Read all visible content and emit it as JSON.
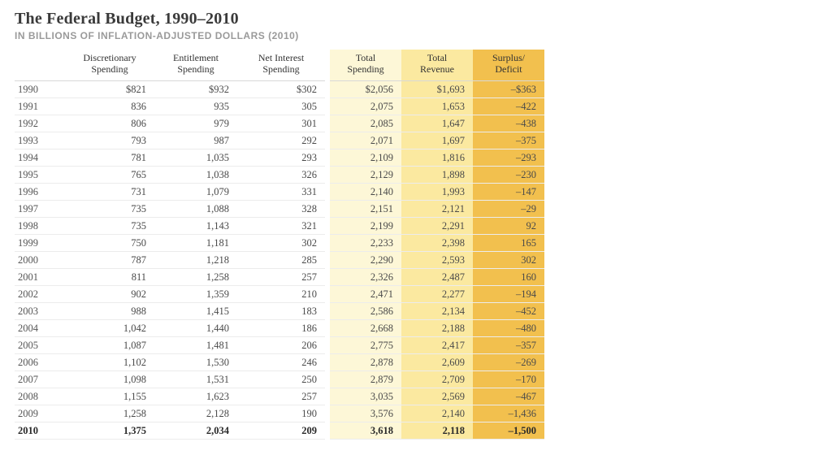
{
  "title": "The Federal Budget, 1990–2010",
  "subtitle": "IN BILLIONS OF INFLATION-ADJUSTED DOLLARS (2010)",
  "columns": {
    "year": "",
    "discretionary": "Discretionary\nSpending",
    "entitlement": "Entitlement\nSpending",
    "netinterest": "Net Interest\nSpending",
    "totalspending": "Total\nSpending",
    "totalrevenue": "Total\nRevenue",
    "surplus": "Surplus/\nDeficit"
  },
  "col_bg": {
    "totalspending": "#fdf7d7",
    "totalrevenue": "#fbe9a0",
    "surplus": "#f2c04e"
  },
  "rows": [
    {
      "year": "1990",
      "disc": "$821",
      "ent": "$932",
      "net": "$302",
      "ts": "$2,056",
      "tr": "$1,693",
      "sd": "–$363"
    },
    {
      "year": "1991",
      "disc": "836",
      "ent": "935",
      "net": "305",
      "ts": "2,075",
      "tr": "1,653",
      "sd": "–422"
    },
    {
      "year": "1992",
      "disc": "806",
      "ent": "979",
      "net": "301",
      "ts": "2,085",
      "tr": "1,647",
      "sd": "–438"
    },
    {
      "year": "1993",
      "disc": "793",
      "ent": "987",
      "net": "292",
      "ts": "2,071",
      "tr": "1,697",
      "sd": "–375"
    },
    {
      "year": "1994",
      "disc": "781",
      "ent": "1,035",
      "net": "293",
      "ts": "2,109",
      "tr": "1,816",
      "sd": "–293"
    },
    {
      "year": "1995",
      "disc": "765",
      "ent": "1,038",
      "net": "326",
      "ts": "2,129",
      "tr": "1,898",
      "sd": "–230"
    },
    {
      "year": "1996",
      "disc": "731",
      "ent": "1,079",
      "net": "331",
      "ts": "2,140",
      "tr": "1,993",
      "sd": "–147"
    },
    {
      "year": "1997",
      "disc": "735",
      "ent": "1,088",
      "net": "328",
      "ts": "2,151",
      "tr": "2,121",
      "sd": "–29"
    },
    {
      "year": "1998",
      "disc": "735",
      "ent": "1,143",
      "net": "321",
      "ts": "2,199",
      "tr": "2,291",
      "sd": "92"
    },
    {
      "year": "1999",
      "disc": "750",
      "ent": "1,181",
      "net": "302",
      "ts": "2,233",
      "tr": "2,398",
      "sd": "165"
    },
    {
      "year": "2000",
      "disc": "787",
      "ent": "1,218",
      "net": "285",
      "ts": "2,290",
      "tr": "2,593",
      "sd": "302"
    },
    {
      "year": "2001",
      "disc": "811",
      "ent": "1,258",
      "net": "257",
      "ts": "2,326",
      "tr": "2,487",
      "sd": "160"
    },
    {
      "year": "2002",
      "disc": "902",
      "ent": "1,359",
      "net": "210",
      "ts": "2,471",
      "tr": "2,277",
      "sd": "–194"
    },
    {
      "year": "2003",
      "disc": "988",
      "ent": "1,415",
      "net": "183",
      "ts": "2,586",
      "tr": "2,134",
      "sd": "–452"
    },
    {
      "year": "2004",
      "disc": "1,042",
      "ent": "1,440",
      "net": "186",
      "ts": "2,668",
      "tr": "2,188",
      "sd": "–480"
    },
    {
      "year": "2005",
      "disc": "1,087",
      "ent": "1,481",
      "net": "206",
      "ts": "2,775",
      "tr": "2,417",
      "sd": "–357"
    },
    {
      "year": "2006",
      "disc": "1,102",
      "ent": "1,530",
      "net": "246",
      "ts": "2,878",
      "tr": "2,609",
      "sd": "–269"
    },
    {
      "year": "2007",
      "disc": "1,098",
      "ent": "1,531",
      "net": "250",
      "ts": "2,879",
      "tr": "2,709",
      "sd": "–170"
    },
    {
      "year": "2008",
      "disc": "1,155",
      "ent": "1,623",
      "net": "257",
      "ts": "3,035",
      "tr": "2,569",
      "sd": "–467"
    },
    {
      "year": "2009",
      "disc": "1,258",
      "ent": "2,128",
      "net": "190",
      "ts": "3,576",
      "tr": "2,140",
      "sd": "–1,436"
    },
    {
      "year": "2010",
      "disc": "1,375",
      "ent": "2,034",
      "net": "209",
      "ts": "3,618",
      "tr": "2,118",
      "sd": "–1,500",
      "bold": true
    }
  ]
}
